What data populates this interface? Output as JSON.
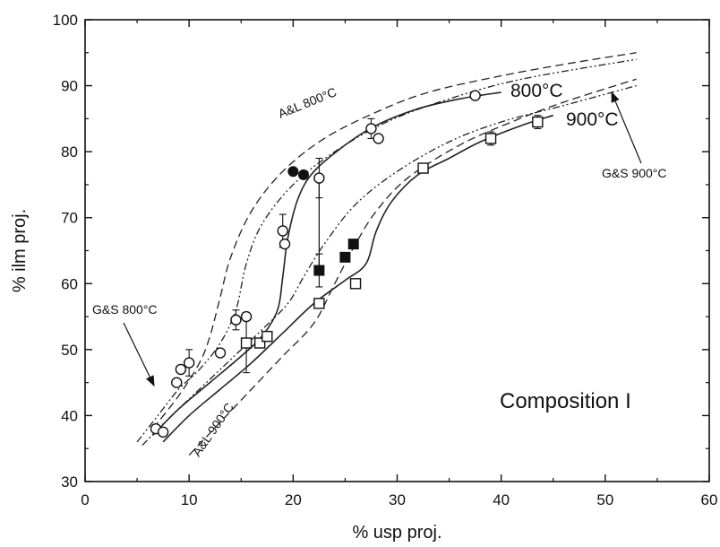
{
  "chart_data": {
    "type": "scatter",
    "xlabel": "% usp proj.",
    "ylabel": "% ilm proj.",
    "xlim": [
      0,
      60
    ],
    "ylim": [
      30,
      100
    ],
    "x_ticks": [
      0,
      10,
      20,
      30,
      40,
      50,
      60
    ],
    "y_ticks": [
      30,
      40,
      50,
      60,
      70,
      80,
      90,
      100
    ],
    "grid": false,
    "annotation": "Composition I",
    "curves": [
      {
        "label": "800°C",
        "style": "solid",
        "points": [
          [
            6.5,
            37
          ],
          [
            9,
            41
          ],
          [
            12,
            45
          ],
          [
            15,
            49
          ],
          [
            17,
            52
          ],
          [
            18.5,
            56
          ],
          [
            19,
            61
          ],
          [
            19.5,
            67
          ],
          [
            20.5,
            73
          ],
          [
            22,
            77
          ],
          [
            25,
            81
          ],
          [
            28,
            84
          ],
          [
            32,
            86.5
          ],
          [
            36,
            88
          ],
          [
            40,
            89
          ]
        ]
      },
      {
        "label": "900°C",
        "style": "solid",
        "points": [
          [
            7.5,
            36
          ],
          [
            10,
            40
          ],
          [
            13,
            44
          ],
          [
            16,
            48
          ],
          [
            19,
            52.5
          ],
          [
            22,
            57
          ],
          [
            25,
            60.5
          ],
          [
            27,
            63
          ],
          [
            28,
            68
          ],
          [
            29.5,
            72.5
          ],
          [
            32,
            76.5
          ],
          [
            35,
            79
          ],
          [
            38,
            81.5
          ],
          [
            42,
            84
          ],
          [
            45,
            85.5
          ]
        ]
      },
      {
        "label": "A&L 800°C",
        "style": "dashed",
        "points": [
          [
            6.5,
            38
          ],
          [
            9,
            43
          ],
          [
            11,
            48
          ],
          [
            12,
            52
          ],
          [
            13,
            58
          ],
          [
            14,
            64
          ],
          [
            16,
            71
          ],
          [
            19,
            77
          ],
          [
            23,
            82
          ],
          [
            28,
            86
          ],
          [
            33,
            89
          ],
          [
            40,
            91.5
          ],
          [
            47,
            93.5
          ],
          [
            53,
            95
          ]
        ]
      },
      {
        "label": "A&L 900°C",
        "style": "dashed",
        "points": [
          [
            10,
            34
          ],
          [
            13,
            39
          ],
          [
            16,
            44
          ],
          [
            19,
            49
          ],
          [
            22,
            54
          ],
          [
            24,
            60
          ],
          [
            26,
            66
          ],
          [
            28,
            71
          ],
          [
            31,
            76
          ],
          [
            36,
            81
          ],
          [
            41,
            84.5
          ],
          [
            46,
            87.5
          ],
          [
            53,
            91
          ]
        ]
      },
      {
        "label": "G&S 800°C",
        "style": "dashdot",
        "points": [
          [
            5,
            36
          ],
          [
            7,
            40
          ],
          [
            9,
            44
          ],
          [
            11,
            47
          ],
          [
            13,
            51
          ],
          [
            14.5,
            56
          ],
          [
            15.5,
            63
          ],
          [
            17,
            69
          ],
          [
            20,
            75
          ],
          [
            24,
            80
          ],
          [
            29,
            84.5
          ],
          [
            35,
            88
          ],
          [
            42,
            91
          ],
          [
            53,
            94
          ]
        ]
      },
      {
        "label": "G&S 900°C",
        "style": "dashdot",
        "points": [
          [
            5.5,
            35.5
          ],
          [
            8,
            39.5
          ],
          [
            11,
            44
          ],
          [
            14,
            48.5
          ],
          [
            17,
            53
          ],
          [
            19.5,
            57
          ],
          [
            21,
            61
          ],
          [
            23,
            66
          ],
          [
            26,
            72
          ],
          [
            30,
            77
          ],
          [
            35,
            81.5
          ],
          [
            40,
            84.5
          ],
          [
            46,
            87
          ],
          [
            53,
            90
          ]
        ]
      }
    ],
    "series": [
      {
        "name": "",
        "marker": "open-circle",
        "x": [
          6.8,
          7.5,
          8.8,
          9.2,
          10,
          13,
          14.5,
          15.5,
          19,
          19.2,
          22.5,
          27.5,
          28.2,
          37.5
        ],
        "y": [
          38,
          37.5,
          45,
          47,
          48,
          49.5,
          54.5,
          55,
          68,
          66,
          76,
          83.5,
          82,
          88.5
        ]
      },
      {
        "name": "",
        "marker": "filled-circle",
        "x": [
          20,
          21
        ],
        "y": [
          77,
          76.5
        ]
      },
      {
        "name": "",
        "marker": "open-square",
        "x": [
          15.5,
          16.8,
          17.5,
          22.5,
          26,
          32.5,
          39,
          43.5
        ],
        "y": [
          51,
          51,
          52,
          57,
          60,
          77.5,
          82,
          84.5
        ]
      },
      {
        "name": "",
        "marker": "filled-square",
        "x": [
          22.5,
          25,
          25.8
        ],
        "y": [
          62,
          64,
          66
        ]
      }
    ],
    "error_bars": [
      {
        "x": 19,
        "y": 68,
        "dy": 2.5
      },
      {
        "x": 22.5,
        "y": 76,
        "dy": 3
      },
      {
        "x": 27.5,
        "y": 83.5,
        "dy": 1.5
      },
      {
        "x": 14.5,
        "y": 54.5,
        "dy": 1.5
      },
      {
        "x": 15.5,
        "y": 51,
        "dy": 4.5
      },
      {
        "x": 22.5,
        "y": 62,
        "dy": 2.5
      },
      {
        "x": 39,
        "y": 82,
        "dy": 1
      },
      {
        "x": 43.5,
        "y": 84.5,
        "dy": 1
      },
      {
        "x": 10,
        "y": 48,
        "dy": 2
      }
    ],
    "vertical_link": {
      "x": 22.5,
      "y1": 62,
      "y2": 76
    }
  }
}
